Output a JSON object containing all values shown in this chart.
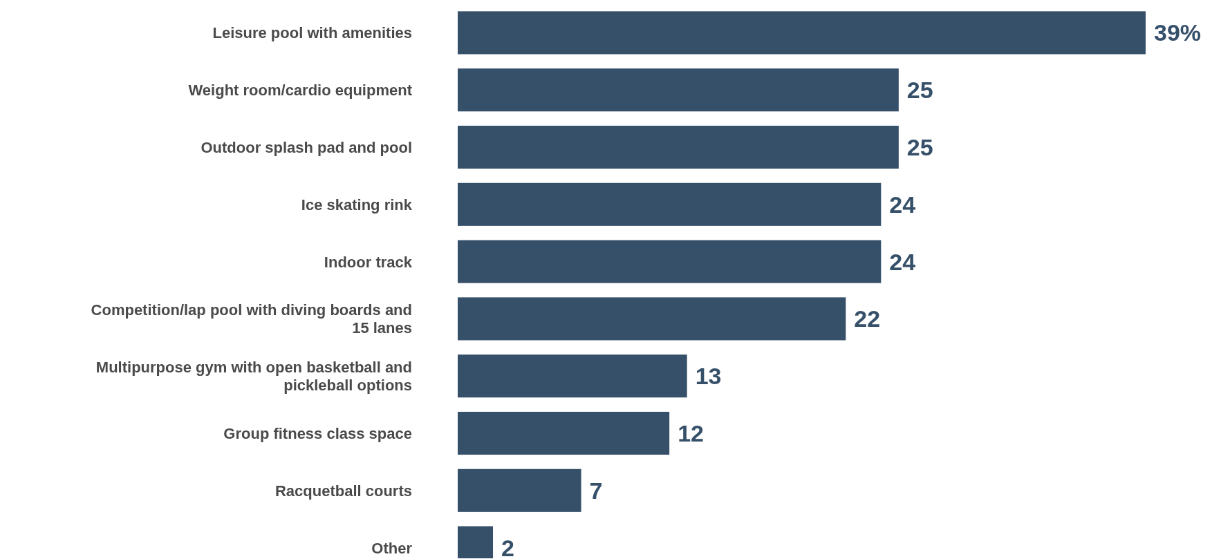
{
  "chart_data": {
    "type": "bar",
    "orientation": "horizontal",
    "categories": [
      "Leisure pool with amenities",
      "Weight room/cardio equipment",
      "Outdoor splash pad and pool",
      "Ice skating rink",
      "Indoor track",
      "Competition/lap pool with diving boards and 15 lanes",
      "Multipurpose gym with open basketball and pickleball options",
      "Group fitness class space",
      "Racquetball courts",
      "Other"
    ],
    "values": [
      39,
      25,
      25,
      24,
      24,
      22,
      13,
      12,
      7,
      2
    ],
    "value_labels": [
      "39%",
      "25",
      "25",
      "24",
      "24",
      "22",
      "13",
      "12",
      "7",
      "2"
    ],
    "color": "#36506a"
  }
}
